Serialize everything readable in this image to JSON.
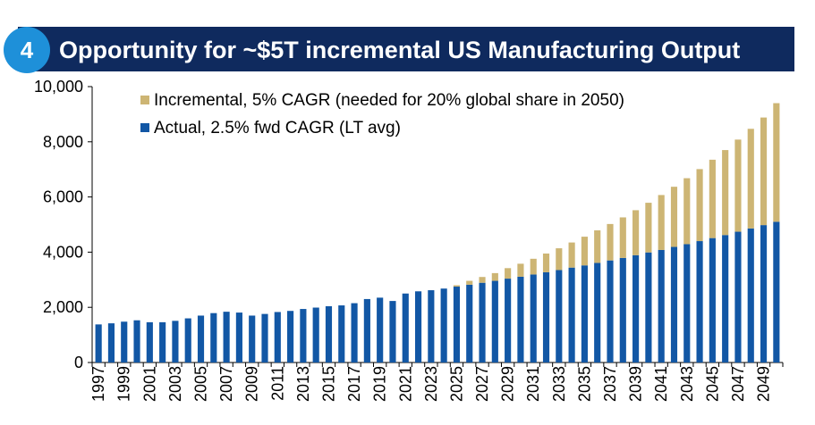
{
  "header": {
    "badge": "4",
    "title": "Opportunity for ~$5T incremental US Manufacturing Output"
  },
  "chart_data": {
    "type": "bar",
    "stacked": true,
    "x": [
      1997,
      1998,
      1999,
      2000,
      2001,
      2002,
      2003,
      2004,
      2005,
      2006,
      2007,
      2008,
      2009,
      2010,
      2011,
      2012,
      2013,
      2014,
      2015,
      2016,
      2017,
      2018,
      2019,
      2020,
      2021,
      2022,
      2023,
      2024,
      2025,
      2026,
      2027,
      2028,
      2029,
      2030,
      2031,
      2032,
      2033,
      2034,
      2035,
      2036,
      2037,
      2038,
      2039,
      2040,
      2041,
      2042,
      2043,
      2044,
      2045,
      2046,
      2047,
      2048,
      2049,
      2050
    ],
    "tick_labels": [
      "1997",
      "1999",
      "2001",
      "2003",
      "2005",
      "2007",
      "2009",
      "2011",
      "2013",
      "2015",
      "2017",
      "2019",
      "2021",
      "2023",
      "2025",
      "2027",
      "2029",
      "2031",
      "2033",
      "2035",
      "2037",
      "2039",
      "2041",
      "2043",
      "2045",
      "2047",
      "2049"
    ],
    "series": [
      {
        "name": "Actual, 2.5% fwd CAGR (LT avg)",
        "color": "#1257a5",
        "values": [
          1380,
          1420,
          1480,
          1530,
          1460,
          1460,
          1510,
          1600,
          1700,
          1790,
          1840,
          1810,
          1700,
          1760,
          1830,
          1870,
          1940,
          1990,
          2040,
          2070,
          2150,
          2300,
          2350,
          2230,
          2500,
          2580,
          2620,
          2680,
          2750,
          2820,
          2890,
          2960,
          3040,
          3110,
          3190,
          3270,
          3350,
          3440,
          3520,
          3610,
          3700,
          3790,
          3890,
          3990,
          4080,
          4190,
          4290,
          4400,
          4510,
          4620,
          4740,
          4860,
          4980,
          5100
        ]
      },
      {
        "name": "Incremental, 5% CAGR (needed for 20% global share in 2050)",
        "color": "#cdb574",
        "values": [
          0,
          0,
          0,
          0,
          0,
          0,
          0,
          0,
          0,
          0,
          0,
          0,
          0,
          0,
          0,
          0,
          0,
          0,
          0,
          0,
          0,
          0,
          0,
          0,
          0,
          0,
          0,
          0,
          50,
          140,
          210,
          280,
          380,
          470,
          570,
          680,
          790,
          910,
          1040,
          1180,
          1320,
          1470,
          1630,
          1800,
          1990,
          2180,
          2390,
          2610,
          2840,
          3080,
          3340,
          3610,
          3900,
          4300
        ]
      }
    ],
    "ylim": [
      0,
      10000
    ],
    "yticks": [
      0,
      2000,
      4000,
      6000,
      8000,
      10000
    ],
    "ytick_labels": [
      "0",
      "2,000",
      "4,000",
      "6,000",
      "8,000",
      "10,000"
    ],
    "legend": "top-left",
    "grid": false
  }
}
